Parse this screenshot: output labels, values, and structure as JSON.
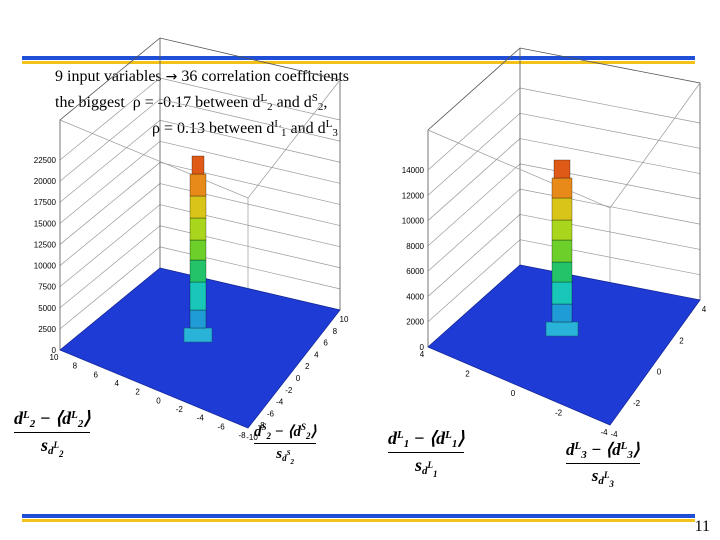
{
  "header": {
    "line1": {
      "text_a": "9 input variables",
      "arrow": "→",
      "text_b": "36 correlation coefficients"
    },
    "line2": {
      "text_a": "the biggest",
      "rho": "ρ",
      "text_b": "= -0.17 between d",
      "sup1": "L",
      "sub1": "2",
      "and": " and d",
      "sup2": "S",
      "sub2": "2",
      "end": ","
    },
    "line3": {
      "rho": "ρ",
      "text_a": "= 0.13 between d",
      "sup1": "L",
      "sub1": "1",
      "and": " and d",
      "sup2": "L",
      "sub2": "3"
    }
  },
  "page_number": "11",
  "colors": {
    "rule_blue": "#1f4fd6",
    "rule_yellow": "#f2c21a",
    "floor_blue": "#1f3bd6"
  },
  "chart_data": [
    {
      "type": "bar3d",
      "zticks": [
        "22500",
        "20000",
        "17500",
        "15000",
        "12500",
        "10000",
        "7500",
        "5000",
        "2500",
        "0"
      ],
      "xticks": [
        "10",
        "8",
        "6",
        "4",
        "2",
        "0",
        "-2",
        "-4",
        "-6",
        "-8"
      ],
      "yticks": [
        "-10",
        "-8",
        "-6",
        "-4",
        "-2",
        "0",
        "2",
        "4",
        "6",
        "8",
        "10"
      ],
      "xlabel": {
        "a": "d",
        "sup_a": "L",
        "sub_a": "2",
        "b": "d",
        "sup_b": "L",
        "sub_b": "2",
        "den": "s",
        "den_sub": "d",
        "den_sub_sup": "L",
        "den_sub_sub": "2"
      },
      "ylabel": {
        "a": "d",
        "sup_a": "S",
        "sub_a": "2",
        "b": "d",
        "sup_b": "S",
        "sub_b": "2",
        "den": "s",
        "den_sub": "d",
        "den_sub_sup": "S",
        "den_sub_sub": "2"
      }
    },
    {
      "type": "bar3d",
      "zticks": [
        "14000",
        "12000",
        "10000",
        "8000",
        "6000",
        "4000",
        "2000",
        "0"
      ],
      "xticks": [
        "4",
        "2",
        "0",
        "-2",
        "-4"
      ],
      "yticks": [
        "-4",
        "-2",
        "0",
        "2",
        "4"
      ],
      "xlabel": {
        "a": "d",
        "sup_a": "L",
        "sub_a": "1",
        "b": "d",
        "sup_b": "L",
        "sub_b": "1",
        "den": "s",
        "den_sub": "d",
        "den_sub_sup": "L",
        "den_sub_sub": "1"
      },
      "ylabel": {
        "a": "d",
        "sup_a": "L",
        "sub_a": "3",
        "b": "d",
        "sup_b": "L",
        "sub_b": "3",
        "den": "s",
        "den_sub": "d",
        "den_sub_sup": "L",
        "den_sub_sub": "3"
      }
    }
  ]
}
